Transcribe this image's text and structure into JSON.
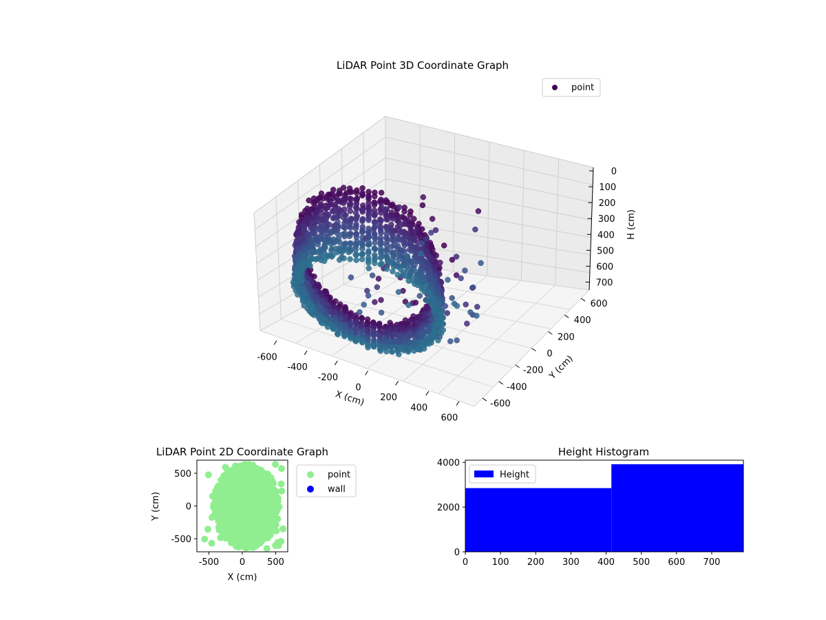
{
  "chart_data": [
    {
      "type": "scatter3d",
      "title": "LiDAR Point 3D Coordinate Graph",
      "xlabel": "X (cm)",
      "ylabel": "Y (cm)",
      "zlabel": "H (cm)",
      "xlim": [
        -700,
        700
      ],
      "ylim": [
        -700,
        700
      ],
      "zlim": [
        0,
        750
      ],
      "z_inverted": true,
      "x_ticks": [
        "-600",
        "-400",
        "-200",
        "0",
        "200",
        "400",
        "600"
      ],
      "y_ticks": [
        "-600",
        "-400",
        "-200",
        "0",
        "200",
        "400",
        "600"
      ],
      "z_ticks": [
        "0",
        "100",
        "200",
        "300",
        "400",
        "500",
        "600",
        "700"
      ],
      "legend": [
        "point"
      ],
      "legend_position": "top-right",
      "colormap": "viridis",
      "grid": true,
      "series": [
        {
          "name": "point",
          "color": "#440154",
          "shape": "cylindrical wall of points, radius ~450 cm, heights 0-750 cm, with sparse outliers",
          "radius": 450,
          "height_range": [
            0,
            750
          ]
        }
      ]
    },
    {
      "type": "scatter",
      "title": "LiDAR Point 2D Coordinate Graph",
      "xlabel": "X (cm)",
      "ylabel": "Y (cm)",
      "xlim": [
        -680,
        680
      ],
      "ylim": [
        -700,
        700
      ],
      "x_ticks": [
        "-500",
        "0",
        "500"
      ],
      "y_ticks": [
        "-500",
        "0",
        "500"
      ],
      "legend": [
        "point",
        "wall"
      ],
      "legend_position": "outside-right",
      "series": [
        {
          "name": "point",
          "color": "#90ee90"
        },
        {
          "name": "wall",
          "color": "#0000ff"
        }
      ]
    },
    {
      "type": "histogram",
      "title": "Height Histogram",
      "xlim": [
        0,
        790
      ],
      "ylim": [
        0,
        4100
      ],
      "x_ticks": [
        "0",
        "100",
        "200",
        "300",
        "400",
        "500",
        "600",
        "700"
      ],
      "y_ticks": [
        "0",
        "2000",
        "4000"
      ],
      "legend": [
        "Height"
      ],
      "legend_position": "upper-left",
      "series": [
        {
          "name": "Height",
          "color": "#0000ff",
          "bins": [
            {
              "from": 0,
              "to": 415,
              "count": 2850
            },
            {
              "from": 415,
              "to": 790,
              "count": 3920
            }
          ]
        }
      ]
    }
  ]
}
